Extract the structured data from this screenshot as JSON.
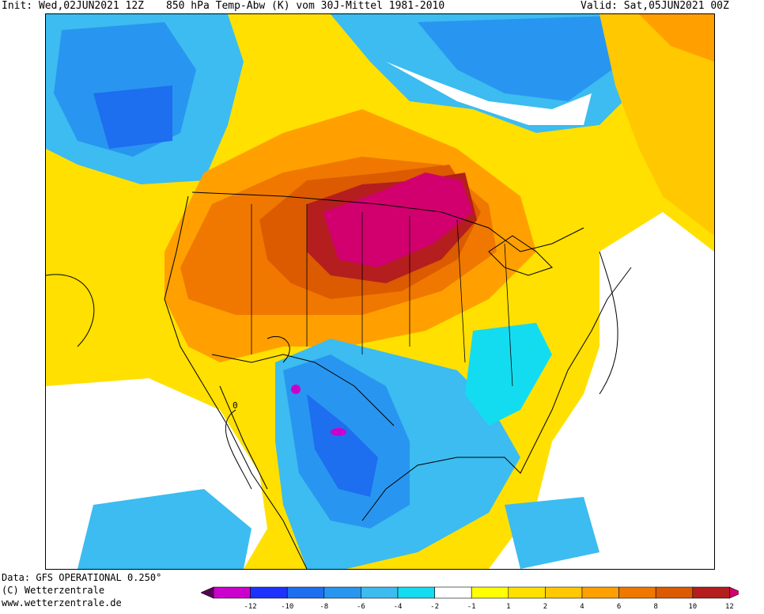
{
  "header": {
    "init": "Init: Wed,02JUN2021 12Z",
    "title": "850 hPa Temp-Abw (K) vom 30J-Mittel 1981-2010",
    "valid": "Valid: Sat,05JUN2021 00Z"
  },
  "footer": {
    "data_source": "Data: GFS OPERATIONAL 0.250°",
    "copyright": "(C) Wetterzentrale",
    "url": "www.wetterzentrale.de"
  },
  "contour_label": "0",
  "colorbar": {
    "colors": [
      "#5a005a",
      "#cc00cc",
      "#1e32ff",
      "#1e6ef0",
      "#2896f0",
      "#3cbcf0",
      "#14dcf0",
      "#ffffff",
      "#ffff00",
      "#ffe000",
      "#ffc800",
      "#ffa000",
      "#f07800",
      "#dc5a00",
      "#b41e1e",
      "#d2006e"
    ],
    "ticks": [
      "-12",
      "-10",
      "-8",
      "-6",
      "-4",
      "-2",
      "-1",
      "1",
      "2",
      "4",
      "6",
      "8",
      "10",
      "12"
    ]
  },
  "palette": {
    "very_cold": "#1e6ef0",
    "cold": "#2896f0",
    "cool": "#3cbcf0",
    "slightly_cool": "#14dcf0",
    "neutral": "#ffffff",
    "slight_warm": "#ffff00",
    "warm": "#ffe000",
    "warmer": "#ffc800",
    "hot": "#ffa000",
    "hotter": "#f07800",
    "very_hot": "#dc5a00",
    "extreme": "#b41e1e",
    "max": "#d2006e"
  }
}
